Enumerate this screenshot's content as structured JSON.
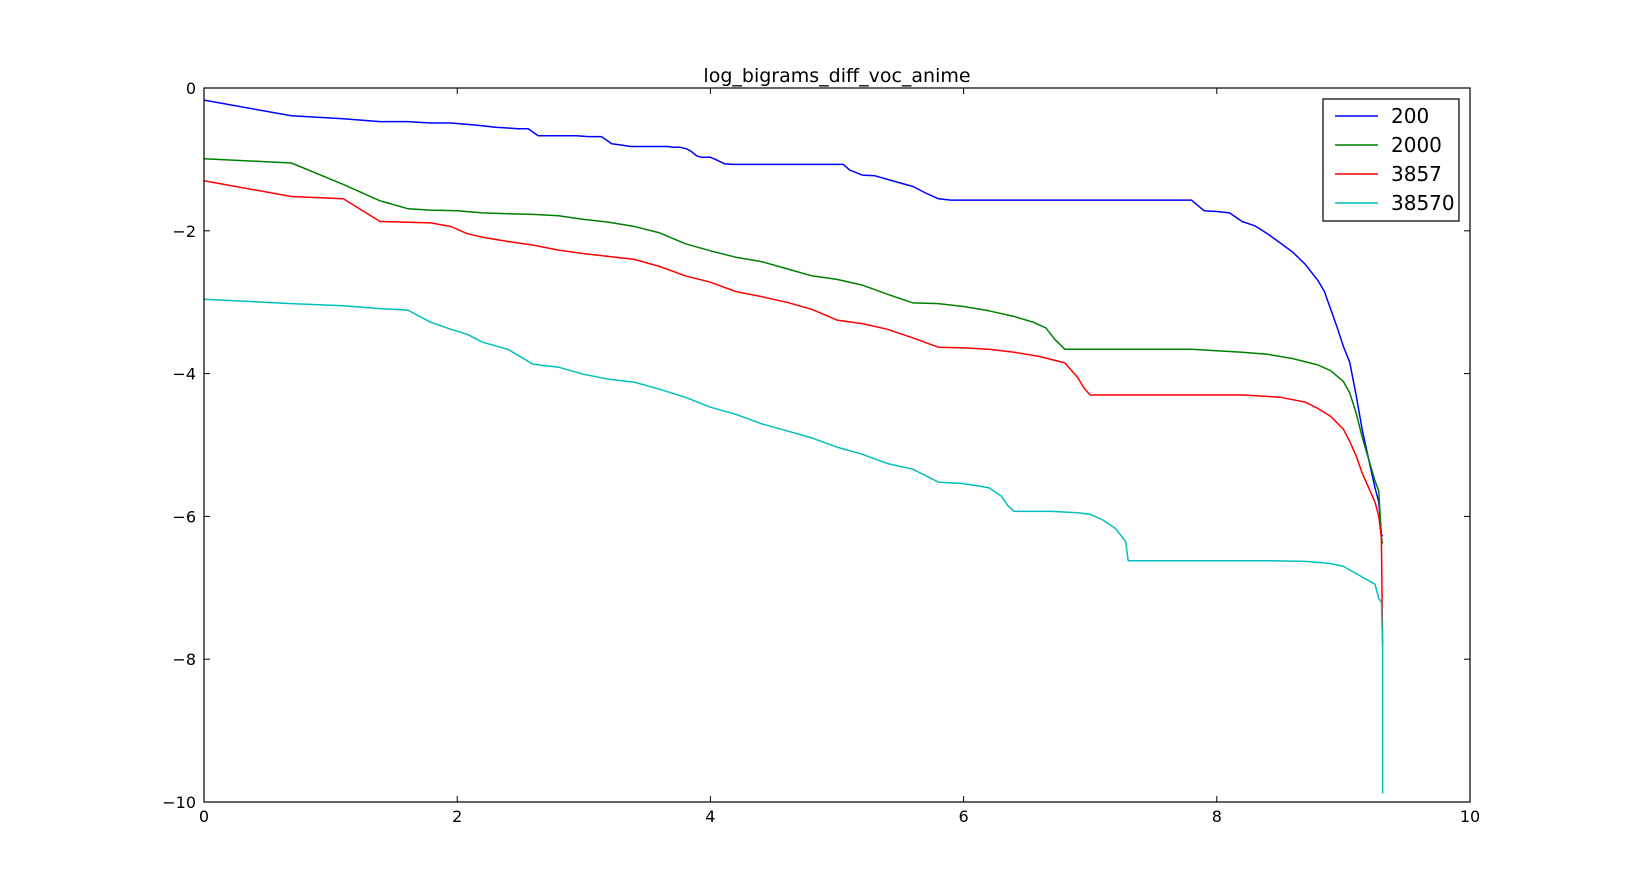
{
  "chart_data": {
    "type": "line",
    "title": "log_bigrams_diff_voc_anime",
    "xlabel": "",
    "ylabel": "",
    "xlim": [
      0,
      10
    ],
    "ylim": [
      -10,
      0
    ],
    "xticks": [
      0,
      2,
      4,
      6,
      8,
      10
    ],
    "yticks": [
      0,
      -2,
      -4,
      -6,
      -8,
      -10
    ],
    "xtick_labels": [
      "0",
      "2",
      "4",
      "6",
      "8",
      "10"
    ],
    "ytick_labels": [
      "0",
      "−2",
      "−4",
      "−6",
      "−8",
      "−10"
    ],
    "grid": false,
    "legend_position": "top-right",
    "series": [
      {
        "name": "200",
        "color": "#0000ff",
        "x": [
          0,
          0.69,
          1.1,
          1.39,
          1.61,
          1.79,
          1.95,
          2.08,
          2.2,
          2.3,
          2.4,
          2.48,
          2.56,
          2.64,
          2.71,
          2.83,
          2.94,
          3.04,
          3.14,
          3.22,
          3.3,
          3.37,
          3.43,
          3.5,
          3.56,
          3.61,
          3.66,
          3.71,
          3.76,
          3.81,
          3.85,
          3.89,
          3.93,
          3.97,
          4.0,
          4.04,
          4.11,
          4.17,
          4.3,
          4.5,
          4.7,
          4.9,
          5.05,
          5.1,
          5.2,
          5.3,
          5.4,
          5.5,
          5.6,
          5.7,
          5.8,
          5.9,
          6.0,
          6.3,
          6.7,
          7.0,
          7.5,
          7.8,
          7.9,
          8.0,
          8.1,
          8.2,
          8.3,
          8.4,
          8.5,
          8.6,
          8.7,
          8.8,
          8.85,
          8.9,
          8.95,
          9.0,
          9.05,
          9.1,
          9.15,
          9.2,
          9.25,
          9.28,
          9.3,
          9.31
        ],
        "y": [
          -0.17,
          -0.39,
          -0.43,
          -0.47,
          -0.47,
          -0.49,
          -0.49,
          -0.51,
          -0.53,
          -0.55,
          -0.56,
          -0.57,
          -0.57,
          -0.67,
          -0.67,
          -0.67,
          -0.67,
          -0.68,
          -0.68,
          -0.78,
          -0.8,
          -0.82,
          -0.82,
          -0.82,
          -0.82,
          -0.82,
          -0.82,
          -0.83,
          -0.83,
          -0.85,
          -0.89,
          -0.95,
          -0.97,
          -0.97,
          -0.97,
          -1.0,
          -1.06,
          -1.07,
          -1.07,
          -1.07,
          -1.07,
          -1.07,
          -1.07,
          -1.15,
          -1.22,
          -1.23,
          -1.28,
          -1.33,
          -1.38,
          -1.47,
          -1.55,
          -1.57,
          -1.57,
          -1.57,
          -1.57,
          -1.57,
          -1.57,
          -1.57,
          -1.72,
          -1.73,
          -1.75,
          -1.87,
          -1.93,
          -2.04,
          -2.17,
          -2.3,
          -2.47,
          -2.7,
          -2.85,
          -3.1,
          -3.35,
          -3.62,
          -3.84,
          -4.3,
          -4.8,
          -5.2,
          -5.6,
          -5.8,
          -6.25,
          -6.28
        ]
      },
      {
        "name": "2000",
        "color": "#008000",
        "x": [
          0,
          0.69,
          1.1,
          1.39,
          1.61,
          1.79,
          2.0,
          2.2,
          2.4,
          2.6,
          2.8,
          3.0,
          3.2,
          3.4,
          3.6,
          3.8,
          4.0,
          4.2,
          4.4,
          4.6,
          4.8,
          5.0,
          5.2,
          5.4,
          5.6,
          5.8,
          6.0,
          6.2,
          6.4,
          6.55,
          6.65,
          6.72,
          6.8,
          6.9,
          7.2,
          7.5,
          7.8,
          8.0,
          8.2,
          8.4,
          8.6,
          8.8,
          8.9,
          9.0,
          9.05,
          9.1,
          9.15,
          9.2,
          9.25,
          9.28,
          9.3,
          9.31
        ],
        "y": [
          -0.99,
          -1.05,
          -1.35,
          -1.58,
          -1.69,
          -1.71,
          -1.72,
          -1.75,
          -1.76,
          -1.77,
          -1.79,
          -1.84,
          -1.88,
          -1.94,
          -2.03,
          -2.18,
          -2.28,
          -2.37,
          -2.43,
          -2.53,
          -2.63,
          -2.68,
          -2.76,
          -2.89,
          -3.01,
          -3.02,
          -3.06,
          -3.12,
          -3.2,
          -3.28,
          -3.36,
          -3.52,
          -3.66,
          -3.66,
          -3.66,
          -3.66,
          -3.66,
          -3.68,
          -3.7,
          -3.73,
          -3.79,
          -3.88,
          -3.96,
          -4.11,
          -4.27,
          -4.55,
          -4.9,
          -5.2,
          -5.5,
          -5.65,
          -6.3,
          -6.38
        ]
      },
      {
        "name": "3857",
        "color": "#ff0000",
        "x": [
          0,
          0.69,
          1.1,
          1.39,
          1.61,
          1.79,
          1.95,
          2.08,
          2.2,
          2.4,
          2.6,
          2.8,
          3.0,
          3.2,
          3.4,
          3.6,
          3.8,
          4.0,
          4.2,
          4.4,
          4.6,
          4.8,
          5.0,
          5.2,
          5.4,
          5.6,
          5.8,
          6.0,
          6.2,
          6.4,
          6.6,
          6.8,
          6.9,
          6.95,
          7.0,
          7.3,
          7.6,
          7.9,
          8.2,
          8.5,
          8.7,
          8.8,
          8.9,
          9.0,
          9.05,
          9.1,
          9.15,
          9.2,
          9.25,
          9.28,
          9.3,
          9.31
        ],
        "y": [
          -1.3,
          -1.52,
          -1.55,
          -1.87,
          -1.88,
          -1.89,
          -1.94,
          -2.04,
          -2.09,
          -2.15,
          -2.2,
          -2.27,
          -2.32,
          -2.36,
          -2.4,
          -2.5,
          -2.63,
          -2.72,
          -2.85,
          -2.92,
          -3.0,
          -3.1,
          -3.25,
          -3.3,
          -3.38,
          -3.5,
          -3.63,
          -3.64,
          -3.66,
          -3.7,
          -3.76,
          -3.85,
          -4.05,
          -4.2,
          -4.3,
          -4.3,
          -4.3,
          -4.3,
          -4.3,
          -4.33,
          -4.4,
          -4.49,
          -4.6,
          -4.78,
          -4.95,
          -5.15,
          -5.4,
          -5.6,
          -5.8,
          -6.0,
          -6.3,
          -7.8
        ]
      },
      {
        "name": "38570",
        "color": "#00bfbf",
        "x": [
          0,
          0.69,
          1.1,
          1.39,
          1.61,
          1.79,
          1.95,
          2.08,
          2.2,
          2.4,
          2.6,
          2.8,
          3.0,
          3.2,
          3.4,
          3.6,
          3.8,
          4.0,
          4.2,
          4.4,
          4.6,
          4.8,
          5.0,
          5.2,
          5.4,
          5.6,
          5.8,
          6.0,
          6.2,
          6.3,
          6.35,
          6.4,
          6.7,
          6.9,
          7.0,
          7.1,
          7.2,
          7.28,
          7.3,
          7.5,
          7.8,
          8.1,
          8.4,
          8.7,
          8.9,
          9.0,
          9.1,
          9.15,
          9.2,
          9.25,
          9.28,
          9.3,
          9.31,
          9.31
        ],
        "y": [
          -2.96,
          -3.02,
          -3.05,
          -3.09,
          -3.11,
          -3.28,
          -3.38,
          -3.45,
          -3.56,
          -3.66,
          -3.87,
          -3.91,
          -4.01,
          -4.08,
          -4.12,
          -4.22,
          -4.33,
          -4.47,
          -4.57,
          -4.7,
          -4.8,
          -4.9,
          -5.03,
          -5.13,
          -5.26,
          -5.34,
          -5.52,
          -5.54,
          -5.6,
          -5.72,
          -5.85,
          -5.93,
          -5.93,
          -5.95,
          -5.97,
          -6.05,
          -6.17,
          -6.35,
          -6.62,
          -6.62,
          -6.62,
          -6.62,
          -6.62,
          -6.63,
          -6.66,
          -6.7,
          -6.8,
          -6.85,
          -6.9,
          -6.95,
          -7.15,
          -7.2,
          -7.8,
          -9.88
        ]
      }
    ]
  }
}
